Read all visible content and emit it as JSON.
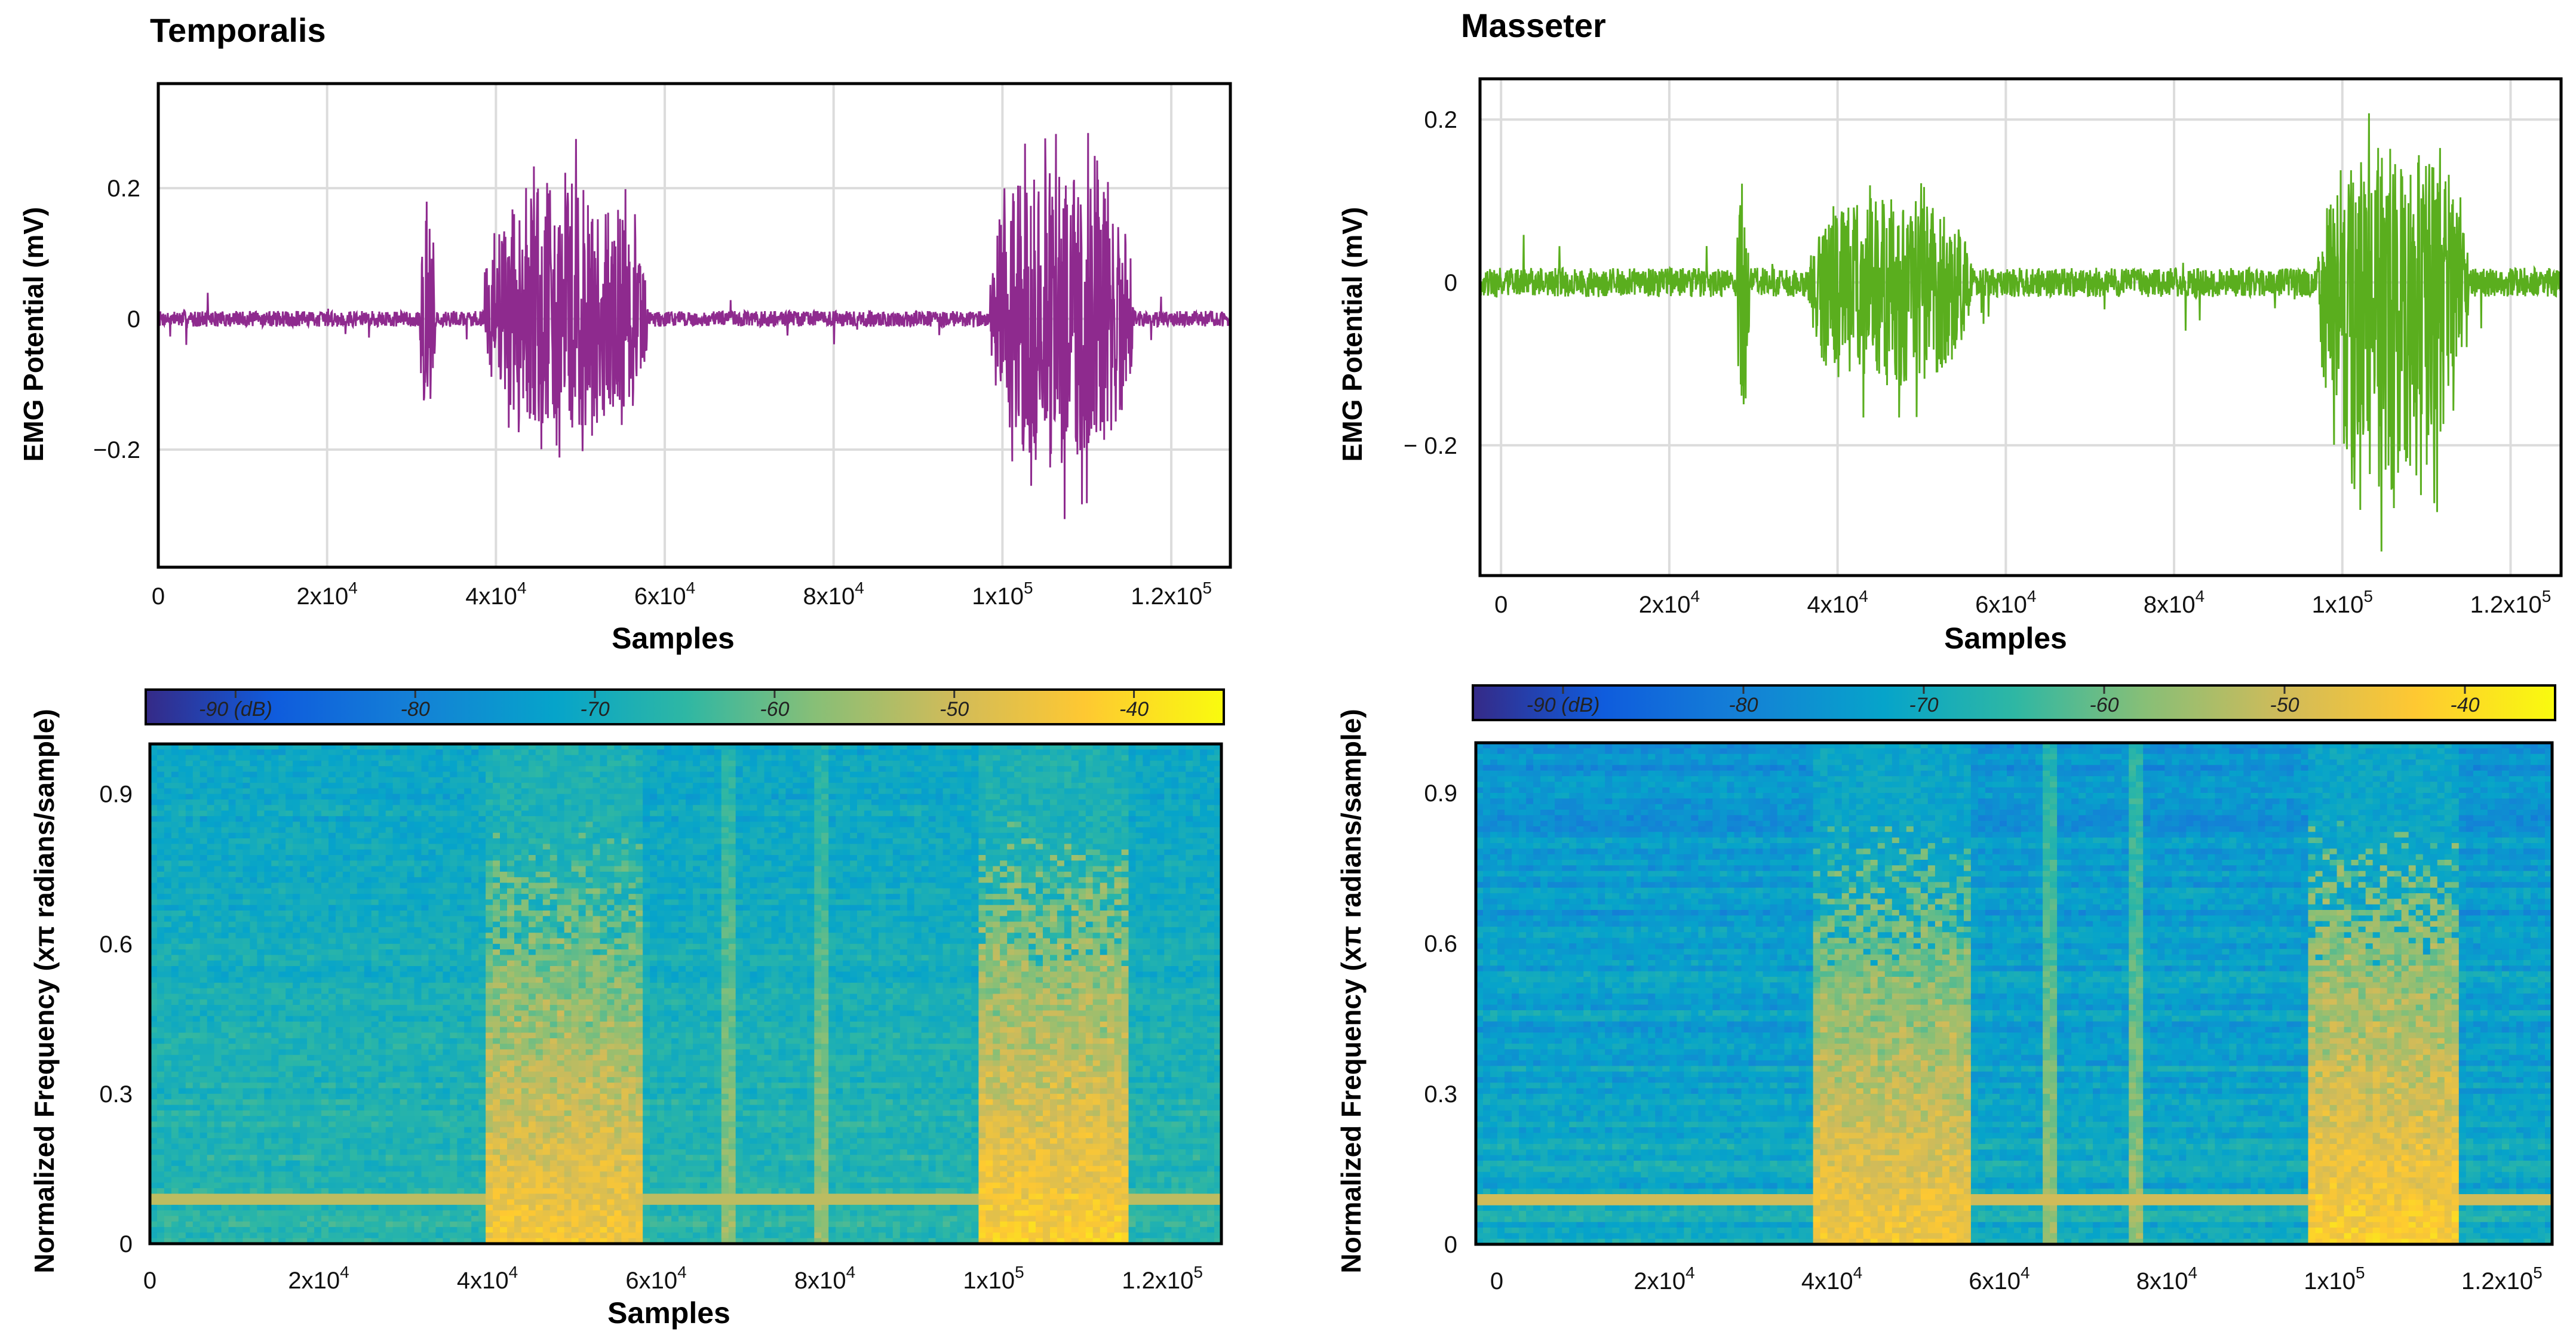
{
  "panels": [
    {
      "title": "Temporalis",
      "color": "#8E2A8E",
      "seed": 7,
      "emg": {
        "type": "line",
        "xlabel": "Samples",
        "ylabel": "EMG Potential (mV)",
        "xlim": [
          0,
          127000
        ],
        "ylim": [
          -0.38,
          0.36
        ],
        "x_ticks": [
          {
            "v": 0,
            "m": "0",
            "e": ""
          },
          {
            "v": 20000,
            "m": "2x10",
            "e": "4"
          },
          {
            "v": 40000,
            "m": "4x10",
            "e": "4"
          },
          {
            "v": 60000,
            "m": "6x10",
            "e": "4"
          },
          {
            "v": 80000,
            "m": "8x10",
            "e": "4"
          },
          {
            "v": 100000,
            "m": "1x10",
            "e": "5"
          },
          {
            "v": 120000,
            "m": "1.2x10",
            "e": "5"
          }
        ],
        "y_ticks": [
          {
            "v": 0.2,
            "label": "0.2"
          },
          {
            "v": 0,
            "label": "0"
          },
          {
            "v": -0.2,
            "label": "−0.2"
          }
        ],
        "bursts": [
          {
            "start": 31000,
            "end": 32800,
            "amp": 0.27,
            "neg": -0.2
          },
          {
            "start": 38500,
            "end": 58000,
            "amp": 0.28,
            "neg": -0.23
          },
          {
            "start": 98500,
            "end": 115500,
            "amp": 0.33,
            "neg": -0.31
          }
        ],
        "noise_amp": 0.012
      },
      "spectrogram": {
        "type": "heatmap",
        "xlabel": "Samples",
        "ylabel": "Normalized Frequency (xπ radians/sample)",
        "xlim": [
          0,
          127000
        ],
        "ylim": [
          0,
          1
        ],
        "x_ticks": [
          {
            "v": 0,
            "m": "0",
            "e": ""
          },
          {
            "v": 20000,
            "m": "2x10",
            "e": "4"
          },
          {
            "v": 40000,
            "m": "4x10",
            "e": "4"
          },
          {
            "v": 60000,
            "m": "6x10",
            "e": "4"
          },
          {
            "v": 80000,
            "m": "8x10",
            "e": "4"
          },
          {
            "v": 100000,
            "m": "1x10",
            "e": "5"
          },
          {
            "v": 120000,
            "m": "1.2x10",
            "e": "5"
          }
        ],
        "y_ticks": [
          {
            "v": 0.9,
            "label": "0.9"
          },
          {
            "v": 0.6,
            "label": "0.6"
          },
          {
            "v": 0.3,
            "label": "0.3"
          },
          {
            "v": 0,
            "label": "0"
          }
        ],
        "colorbar": {
          "labels": [
            "-90 (dB)",
            "-80",
            "-70",
            "-60",
            "-50",
            "-40"
          ],
          "range": [
            -95,
            -35
          ]
        },
        "background_db": -72,
        "line_hum": {
          "freq": 0.09,
          "db": -52
        },
        "bursts": [
          {
            "start": 40000,
            "end": 58000,
            "db": -44
          },
          {
            "start": 98500,
            "end": 116000,
            "db": -42
          }
        ],
        "vertical_lines": [
          68500,
          79500
        ]
      }
    },
    {
      "title": "Masseter",
      "color": "#5AAE1E",
      "seed": 19,
      "emg": {
        "type": "line",
        "xlabel": "Samples",
        "ylabel": "EMG Potential (mV)",
        "xlim": [
          -2500,
          126000
        ],
        "ylim": [
          -0.36,
          0.25
        ],
        "x_ticks": [
          {
            "v": 0,
            "m": "0",
            "e": ""
          },
          {
            "v": 20000,
            "m": "2x10",
            "e": "4"
          },
          {
            "v": 40000,
            "m": "4x10",
            "e": "4"
          },
          {
            "v": 60000,
            "m": "6x10",
            "e": "4"
          },
          {
            "v": 80000,
            "m": "8x10",
            "e": "4"
          },
          {
            "v": 100000,
            "m": "1x10",
            "e": "5"
          },
          {
            "v": 120000,
            "m": "1.2x10",
            "e": "5"
          }
        ],
        "y_ticks": [
          {
            "v": 0.2,
            "label": "0.2"
          },
          {
            "v": 0,
            "label": "0"
          },
          {
            "v": -0.2,
            "label": "− 0.2"
          }
        ],
        "bursts": [
          {
            "start": 28000,
            "end": 29500,
            "amp": 0.14,
            "neg": -0.21
          },
          {
            "start": 36500,
            "end": 56000,
            "amp": 0.14,
            "neg": -0.18
          },
          {
            "start": 97000,
            "end": 115000,
            "amp": 0.22,
            "neg": -0.34
          }
        ],
        "noise_amp": 0.018
      },
      "spectrogram": {
        "type": "heatmap",
        "xlabel": "",
        "ylabel": "Normalized Frequency (xπ radians/sample)",
        "xlim": [
          -2500,
          126000
        ],
        "ylim": [
          0,
          1
        ],
        "x_ticks": [
          {
            "v": 0,
            "m": "0",
            "e": ""
          },
          {
            "v": 20000,
            "m": "2x10",
            "e": "4"
          },
          {
            "v": 40000,
            "m": "4x10",
            "e": "4"
          },
          {
            "v": 60000,
            "m": "6x10",
            "e": "4"
          },
          {
            "v": 80000,
            "m": "8x10",
            "e": "4"
          },
          {
            "v": 100000,
            "m": "1x10",
            "e": "5"
          },
          {
            "v": 120000,
            "m": "1.2x10",
            "e": "5"
          }
        ],
        "y_ticks": [
          {
            "v": 0.9,
            "label": "0.9"
          },
          {
            "v": 0.6,
            "label": "0.6"
          },
          {
            "v": 0.3,
            "label": "0.3"
          },
          {
            "v": 0,
            "label": "0"
          }
        ],
        "colorbar": {
          "labels": [
            "-90 (dB)",
            "-80",
            "-70",
            "-60",
            "-50",
            "-40"
          ],
          "range": [
            -95,
            -35
          ]
        },
        "background_db": -76,
        "line_hum": {
          "freq": 0.085,
          "db": -50
        },
        "bursts": [
          {
            "start": 38000,
            "end": 57000,
            "db": -44
          },
          {
            "start": 97000,
            "end": 115000,
            "db": -42
          }
        ],
        "vertical_lines": [
          66000,
          76500
        ]
      }
    }
  ]
}
